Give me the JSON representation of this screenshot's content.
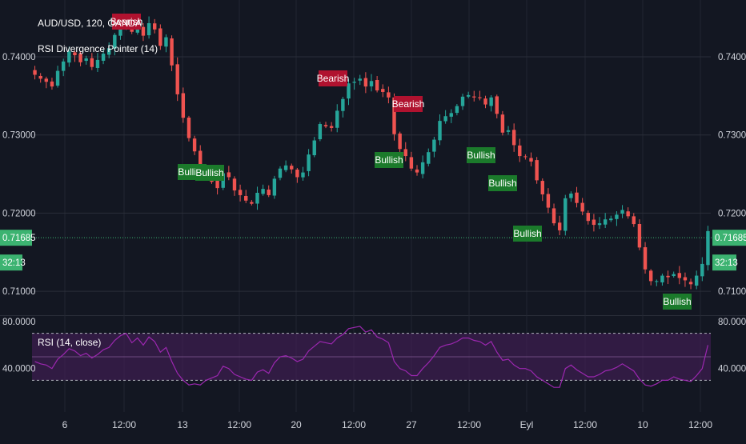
{
  "header": {
    "symbol": "AUD/USD, 120, OANDA",
    "indicator": "RSI Divergence Pointer (14)"
  },
  "rsi_panel": {
    "title": "RSI (14, close)"
  },
  "price_axis": {
    "ticks": [
      "0.74000",
      "0.73000",
      "0.72000",
      "0.71000"
    ],
    "current_price": "0.71685",
    "countdown": "32:13"
  },
  "rsi_axis": {
    "ticks": [
      "80.0000",
      "40.0000"
    ]
  },
  "time_axis": {
    "ticks": [
      "6",
      "12:00",
      "13",
      "12:00",
      "20",
      "12:00",
      "27",
      "12:00",
      "Eyl",
      "12:00",
      "10",
      "12:00"
    ]
  },
  "colors": {
    "background": "#131722",
    "bull_candle": "#26a69a",
    "bear_candle": "#ef5350",
    "bullish_label": "#1b7a2b",
    "bearish_label": "#b0122f",
    "rsi_line": "#9c27b0",
    "rsi_band": "#4a1f5e",
    "current_price": "#3cb371"
  },
  "chart_data": [
    {
      "type": "candlestick",
      "series": [
        {
          "name": "AUD/USD",
          "close": [
            0.7377,
            0.7372,
            0.7368,
            0.7362,
            0.7382,
            0.7394,
            0.7407,
            0.7402,
            0.7393,
            0.7398,
            0.7387,
            0.7396,
            0.7404,
            0.7411,
            0.7428,
            0.744,
            0.7447,
            0.7432,
            0.744,
            0.7427,
            0.7443,
            0.7435,
            0.7414,
            0.7425,
            0.7389,
            0.7352,
            0.7322,
            0.7296,
            0.7279,
            0.7258,
            0.7247,
            0.724,
            0.7232,
            0.7251,
            0.7246,
            0.7229,
            0.7223,
            0.7216,
            0.7212,
            0.7226,
            0.7231,
            0.7223,
            0.7244,
            0.7257,
            0.7261,
            0.7256,
            0.7246,
            0.7252,
            0.7275,
            0.7293,
            0.7314,
            0.7311,
            0.7309,
            0.7331,
            0.7346,
            0.7366,
            0.7368,
            0.7372,
            0.7362,
            0.7369,
            0.7357,
            0.7355,
            0.7348,
            0.7301,
            0.7282,
            0.7273,
            0.7257,
            0.7252,
            0.7265,
            0.7278,
            0.7294,
            0.7318,
            0.7324,
            0.7328,
            0.7337,
            0.7349,
            0.7351,
            0.7348,
            0.7347,
            0.7339,
            0.7348,
            0.7327,
            0.7303,
            0.7306,
            0.7287,
            0.7273,
            0.7272,
            0.7266,
            0.7242,
            0.7224,
            0.7207,
            0.7187,
            0.7178,
            0.7219,
            0.7225,
            0.7213,
            0.7202,
            0.719,
            0.7185,
            0.7187,
            0.7192,
            0.7193,
            0.7198,
            0.7204,
            0.7196,
            0.7186,
            0.7156,
            0.7128,
            0.7113,
            0.7113,
            0.712,
            0.7118,
            0.7122,
            0.7117,
            0.7114,
            0.7109,
            0.712,
            0.7135,
            0.7177
          ],
          "note": "Approximate 2-hour closes read from the chart"
        }
      ],
      "signals": [
        {
          "label": "Bearish",
          "near": "6 12:00 (top)"
        },
        {
          "label": "Bullish",
          "near": "13"
        },
        {
          "label": "Bullish",
          "near": "13"
        },
        {
          "label": "Bearish",
          "near": "20 12:00"
        },
        {
          "label": "Bullish",
          "near": "27"
        },
        {
          "label": "Bearish",
          "near": "27"
        },
        {
          "label": "Bullish",
          "near": "27 12:00"
        },
        {
          "label": "Bullish",
          "near": "Eyl"
        },
        {
          "label": "Bullish",
          "near": "Eyl"
        },
        {
          "label": "Bullish",
          "near": "10 12:00"
        }
      ],
      "ylim": [
        0.7095,
        0.7465
      ],
      "current_price": 0.71685,
      "grid": true
    },
    {
      "type": "line",
      "series": [
        {
          "name": "RSI (14, close)",
          "values": [
            46,
            44,
            43,
            40,
            48,
            52,
            57,
            55,
            51,
            53,
            49,
            52,
            56,
            58,
            64,
            68,
            70,
            62,
            66,
            60,
            67,
            63,
            54,
            58,
            46,
            36,
            30,
            26,
            27,
            26,
            30,
            32,
            34,
            42,
            40,
            35,
            33,
            31,
            30,
            37,
            39,
            36,
            45,
            50,
            51,
            49,
            46,
            48,
            55,
            59,
            63,
            62,
            61,
            66,
            69,
            74,
            75,
            76,
            71,
            73,
            67,
            65,
            62,
            46,
            40,
            38,
            34,
            34,
            40,
            45,
            51,
            58,
            60,
            61,
            63,
            66,
            66,
            64,
            63,
            60,
            63,
            54,
            47,
            48,
            43,
            40,
            40,
            38,
            33,
            30,
            27,
            24,
            24,
            40,
            43,
            39,
            36,
            33,
            33,
            35,
            38,
            39,
            41,
            44,
            41,
            38,
            31,
            26,
            25,
            27,
            30,
            30,
            33,
            31,
            30,
            29,
            34,
            40,
            60
          ],
          "note": "Approximate RSI values read from the chart"
        }
      ],
      "bands": [
        70,
        30
      ],
      "ylim": [
        10,
        85
      ]
    }
  ]
}
